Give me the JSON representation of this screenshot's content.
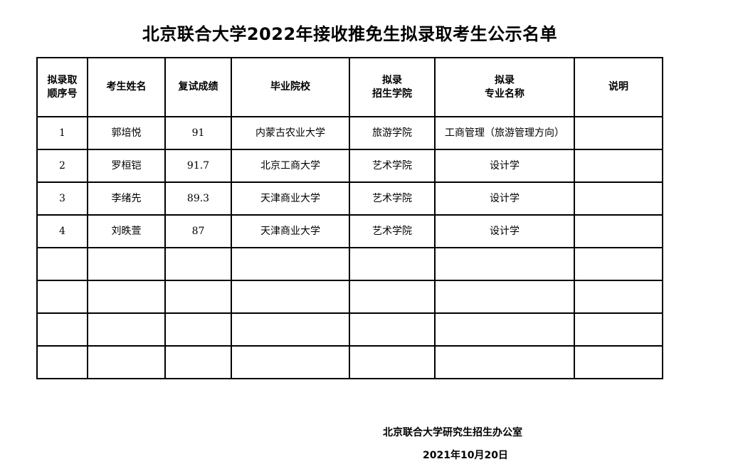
{
  "title": "北京联合大学2022年接收推免生拟录取考生公示名单",
  "table": {
    "headers": [
      "拟录取\n顺序号",
      "考生姓名",
      "复试成绩",
      "毕业院校",
      "拟录\n招生学院",
      "拟录\n专业名称",
      "说明"
    ],
    "rows": [
      [
        "1",
        "郭培悦",
        "91",
        "内蒙古农业大学",
        "旅游学院",
        "工商管理（旅游管理方向）",
        ""
      ],
      [
        "2",
        "罗桓铠",
        "91.7",
        "北京工商大学",
        "艺术学院",
        "设计学",
        ""
      ],
      [
        "3",
        "李绪先",
        "89.3",
        "天津商业大学",
        "艺术学院",
        "设计学",
        ""
      ],
      [
        "4",
        "刘昳萱",
        "87",
        "天津商业大学",
        "艺术学院",
        "设计学",
        ""
      ],
      [
        "",
        "",
        "",
        "",
        "",
        "",
        ""
      ],
      [
        "",
        "",
        "",
        "",
        "",
        "",
        ""
      ],
      [
        "",
        "",
        "",
        "",
        "",
        "",
        ""
      ],
      [
        "",
        "",
        "",
        "",
        "",
        "",
        ""
      ]
    ]
  },
  "footer": {
    "office": "北京联合大学研究生招生办公室",
    "date": "2021年10月20日"
  }
}
